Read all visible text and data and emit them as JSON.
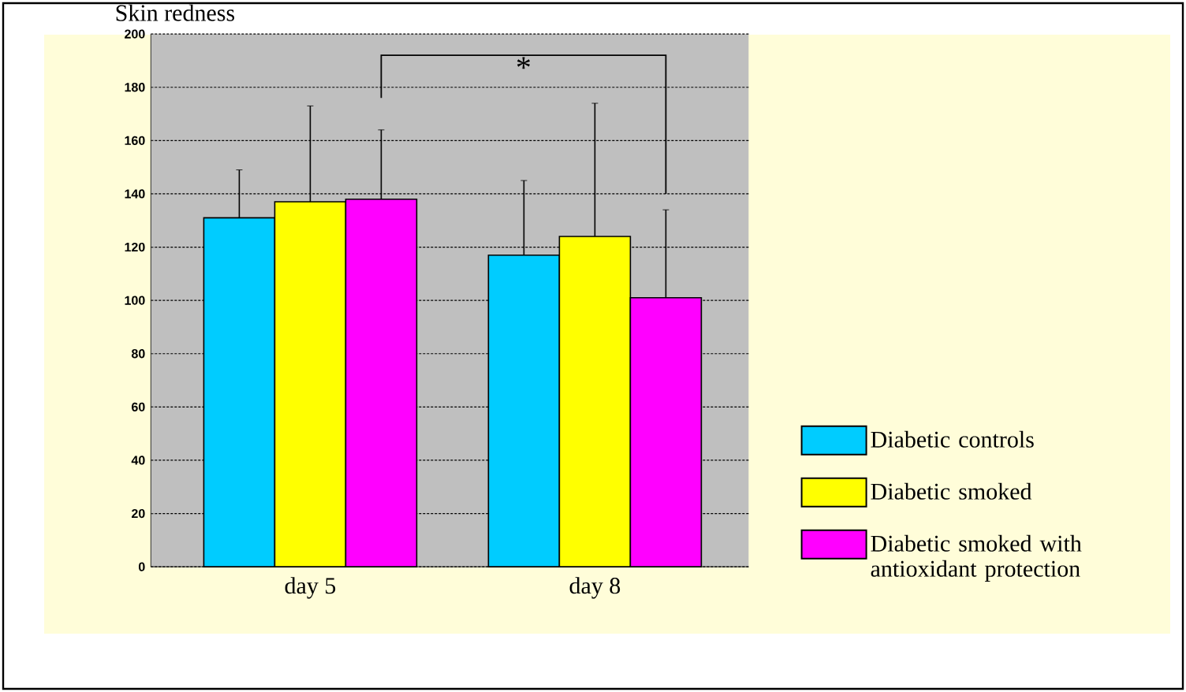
{
  "chart_data": {
    "type": "bar",
    "title": "Skin redness",
    "categories": [
      "day 5",
      "day 8"
    ],
    "series": [
      {
        "name": "Diabetic controls",
        "color": "#00ccff",
        "values": [
          131,
          117
        ],
        "errors": [
          [
            131,
            149
          ],
          [
            117,
            145
          ]
        ]
      },
      {
        "name": "Diabetic smoked",
        "color": "#ffff00",
        "values": [
          137,
          124
        ],
        "errors": [
          [
            137,
            173
          ],
          [
            124,
            174
          ]
        ]
      },
      {
        "name": "Diabetic smoked with antioxidant protection",
        "color": "#ff00ff",
        "values": [
          138,
          101
        ],
        "errors": [
          [
            138,
            164
          ],
          [
            101,
            134
          ]
        ]
      }
    ],
    "ylim": [
      0,
      200
    ],
    "yticks": [
      0,
      20,
      40,
      60,
      80,
      100,
      120,
      140,
      160,
      180,
      200
    ],
    "grid": "y",
    "legend": "right",
    "annotations": [
      "*"
    ]
  }
}
